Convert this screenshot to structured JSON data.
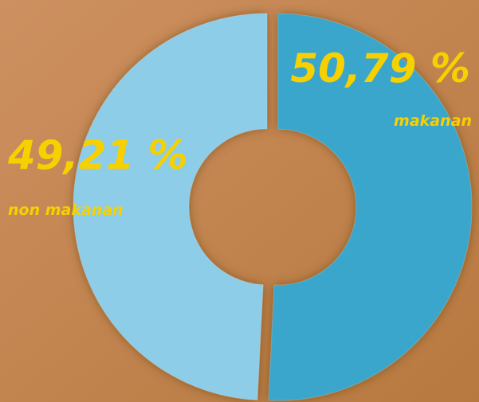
{
  "chart_data": {
    "type": "donut",
    "categories": [
      "makanan",
      "non makanan"
    ],
    "values": [
      50.79,
      49.21
    ],
    "value_labels": [
      "50,79 %",
      "49,21 %"
    ],
    "colors": [
      "#3aa6cb",
      "#8ecde8"
    ]
  }
}
